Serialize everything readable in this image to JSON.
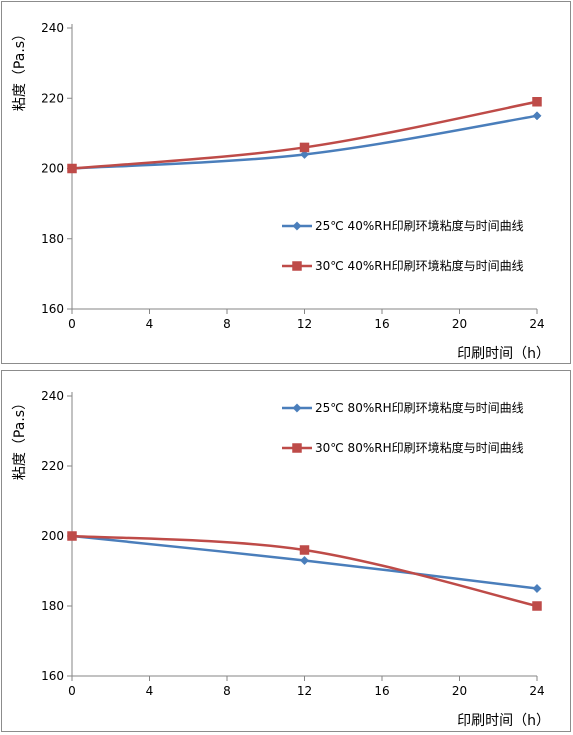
{
  "chart_data": [
    {
      "type": "line",
      "title": "",
      "xlabel": "印刷时间（h）",
      "ylabel": "粘度（Pa.s）",
      "xlim": [
        0,
        24
      ],
      "ylim": [
        160,
        240
      ],
      "xticks": [
        "0",
        "4",
        "8",
        "12",
        "16",
        "20",
        "24"
      ],
      "yticks": [
        "160",
        "180",
        "200",
        "220",
        "240"
      ],
      "grid": false,
      "legend_position": "right",
      "series": [
        {
          "name": "25℃ 40%RH印刷环境粘度与时间曲线",
          "color": "#4a7ebb",
          "marker": "diamond",
          "x": [
            0,
            12,
            24
          ],
          "values": [
            200,
            204,
            215
          ]
        },
        {
          "name": "30℃ 40%RH印刷环境粘度与时间曲线",
          "color": "#be4b48",
          "marker": "square",
          "x": [
            0,
            12,
            24
          ],
          "values": [
            200,
            206,
            219
          ]
        }
      ]
    },
    {
      "type": "line",
      "title": "",
      "xlabel": "印刷时间（h）",
      "ylabel": "粘度（Pa.s）",
      "xlim": [
        0,
        24
      ],
      "ylim": [
        160,
        240
      ],
      "xticks": [
        "0",
        "4",
        "8",
        "12",
        "16",
        "20",
        "24"
      ],
      "yticks": [
        "160",
        "180",
        "200",
        "220",
        "240"
      ],
      "grid": false,
      "legend_position": "top-right",
      "series": [
        {
          "name": "25℃ 80%RH印刷环境粘度与时间曲线",
          "color": "#4a7ebb",
          "marker": "diamond",
          "x": [
            0,
            12,
            24
          ],
          "values": [
            200,
            193,
            185
          ]
        },
        {
          "name": "30℃ 80%RH印刷环境粘度与时间曲线",
          "color": "#be4b48",
          "marker": "square",
          "x": [
            0,
            12,
            24
          ],
          "values": [
            200,
            196,
            180
          ]
        }
      ]
    }
  ]
}
